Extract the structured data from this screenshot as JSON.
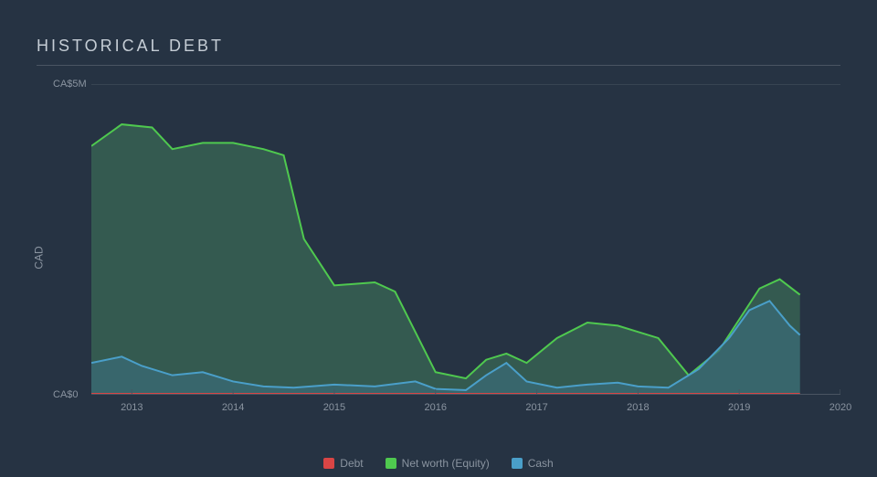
{
  "title": "HISTORICAL DEBT",
  "y_axis": {
    "label": "CAD",
    "ticks": [
      {
        "value": 0,
        "label": "CA$0"
      },
      {
        "value": 5,
        "label": "CA$5M"
      }
    ],
    "ylim": [
      0,
      5
    ]
  },
  "x_axis": {
    "ticks": [
      "2013",
      "2014",
      "2015",
      "2016",
      "2017",
      "2018",
      "2019",
      "2020"
    ],
    "xlim": [
      2012.6,
      2020
    ]
  },
  "background_color": "#263343",
  "grid_color": "#4a5562",
  "text_color": "#8a94a0",
  "title_color": "#c5cdd5",
  "title_fontsize": 18,
  "label_fontsize": 12,
  "tick_fontsize": 11,
  "series": [
    {
      "name": "Net worth (Equity)",
      "legend_label": "Net worth (Equity)",
      "stroke": "#4fc94f",
      "fill": "#3a6b56",
      "fill_opacity": 0.7,
      "stroke_width": 2,
      "points": [
        [
          2012.6,
          4.0
        ],
        [
          2012.9,
          4.35
        ],
        [
          2013.2,
          4.3
        ],
        [
          2013.4,
          3.95
        ],
        [
          2013.7,
          4.05
        ],
        [
          2014.0,
          4.05
        ],
        [
          2014.3,
          3.95
        ],
        [
          2014.5,
          3.85
        ],
        [
          2014.7,
          2.5
        ],
        [
          2015.0,
          1.75
        ],
        [
          2015.4,
          1.8
        ],
        [
          2015.6,
          1.65
        ],
        [
          2015.8,
          1.0
        ],
        [
          2016.0,
          0.35
        ],
        [
          2016.3,
          0.25
        ],
        [
          2016.5,
          0.55
        ],
        [
          2016.7,
          0.65
        ],
        [
          2016.9,
          0.5
        ],
        [
          2017.2,
          0.9
        ],
        [
          2017.5,
          1.15
        ],
        [
          2017.8,
          1.1
        ],
        [
          2018.0,
          1.0
        ],
        [
          2018.2,
          0.9
        ],
        [
          2018.5,
          0.3
        ],
        [
          2018.8,
          0.7
        ],
        [
          2019.0,
          1.2
        ],
        [
          2019.2,
          1.7
        ],
        [
          2019.4,
          1.85
        ],
        [
          2019.6,
          1.6
        ]
      ]
    },
    {
      "name": "Cash",
      "legend_label": "Cash",
      "stroke": "#4a9fc9",
      "fill": "#3a6b78",
      "fill_opacity": 0.7,
      "stroke_width": 2,
      "points": [
        [
          2012.6,
          0.5
        ],
        [
          2012.9,
          0.6
        ],
        [
          2013.1,
          0.45
        ],
        [
          2013.4,
          0.3
        ],
        [
          2013.7,
          0.35
        ],
        [
          2014.0,
          0.2
        ],
        [
          2014.3,
          0.12
        ],
        [
          2014.6,
          0.1
        ],
        [
          2015.0,
          0.15
        ],
        [
          2015.4,
          0.12
        ],
        [
          2015.8,
          0.2
        ],
        [
          2016.0,
          0.08
        ],
        [
          2016.3,
          0.06
        ],
        [
          2016.5,
          0.3
        ],
        [
          2016.7,
          0.5
        ],
        [
          2016.9,
          0.2
        ],
        [
          2017.2,
          0.1
        ],
        [
          2017.5,
          0.15
        ],
        [
          2017.8,
          0.18
        ],
        [
          2018.0,
          0.12
        ],
        [
          2018.3,
          0.1
        ],
        [
          2018.6,
          0.4
        ],
        [
          2018.9,
          0.9
        ],
        [
          2019.1,
          1.35
        ],
        [
          2019.3,
          1.5
        ],
        [
          2019.5,
          1.1
        ],
        [
          2019.6,
          0.95
        ]
      ]
    },
    {
      "name": "Debt",
      "legend_label": "Debt",
      "stroke": "#d94545",
      "fill": "#a03838",
      "fill_opacity": 0.7,
      "stroke_width": 2,
      "points": [
        [
          2012.6,
          0
        ],
        [
          2019.6,
          0
        ]
      ]
    }
  ],
  "legend": {
    "items": [
      {
        "label": "Debt",
        "color": "#d94545"
      },
      {
        "label": "Net worth (Equity)",
        "color": "#4fc94f"
      },
      {
        "label": "Cash",
        "color": "#4a9fc9"
      }
    ],
    "position": "bottom-center"
  }
}
